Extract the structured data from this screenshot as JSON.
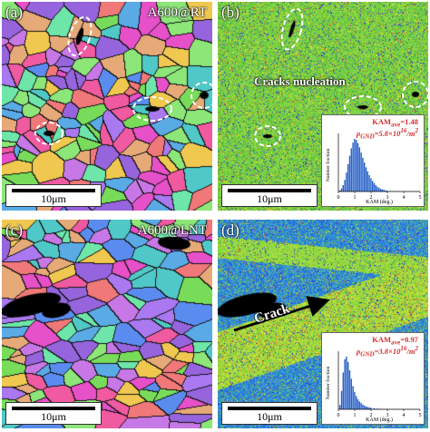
{
  "colors": {
    "kam_bar": "#2a62c9",
    "kam_text": "#d32f2f",
    "ellipse": "#ffffff"
  },
  "panel_a": {
    "letter": "(a)",
    "tag": "A600@RT",
    "scale": "10μm"
  },
  "panel_b": {
    "letter": "(b)",
    "annotation": "Cracks nucleation",
    "scale": "10μm",
    "kam_line": "KAM",
    "kam_sub": "ave",
    "kam_value": "=1.48",
    "rho_line": "ρ",
    "rho_sub": "GND",
    "rho_value": "=5.8×10",
    "rho_exp": "16",
    "rho_unit": "/m",
    "rho_unit_exp": "2",
    "hist": {
      "ylabel": "Number fraction",
      "xlabel": "KAM (deg.)",
      "xticks": [
        "0",
        "1",
        "2",
        "3",
        "4",
        "5"
      ]
    }
  },
  "panel_c": {
    "letter": "(c)",
    "tag": "A600@LNT",
    "scale": "10μm"
  },
  "panel_d": {
    "letter": "(d)",
    "annotation": "Crack",
    "scale": "10μm",
    "kam_line": "KAM",
    "kam_sub": "ave",
    "kam_value": "=0.97",
    "rho_line": "ρ",
    "rho_sub": "GND",
    "rho_value": "=3.8×10",
    "rho_exp": "16",
    "rho_unit": "/m",
    "rho_unit_exp": "2",
    "hist": {
      "ylabel": "Number fraction",
      "xlabel": "KAM (deg.)",
      "xticks": [
        "0",
        "1",
        "2",
        "3",
        "4",
        "5"
      ]
    }
  },
  "chart_data": [
    {
      "type": "bar",
      "title": "",
      "xlabel": "KAM (deg.)",
      "ylabel": "Number fraction",
      "xlim": [
        0,
        5
      ],
      "x": [
        0.1,
        0.2,
        0.3,
        0.4,
        0.5,
        0.6,
        0.7,
        0.8,
        0.9,
        1.0,
        1.1,
        1.2,
        1.3,
        1.4,
        1.5,
        1.6,
        1.7,
        1.8,
        1.9,
        2.0,
        2.1,
        2.2,
        2.3,
        2.4,
        2.5,
        2.6,
        2.7,
        2.8,
        2.9,
        3.0,
        3.2,
        3.4,
        3.6,
        3.8,
        4.0
      ],
      "values": [
        0.02,
        0.06,
        0.12,
        0.22,
        0.36,
        0.52,
        0.68,
        0.82,
        0.93,
        1.0,
        0.98,
        0.92,
        0.84,
        0.74,
        0.64,
        0.55,
        0.46,
        0.38,
        0.31,
        0.25,
        0.2,
        0.16,
        0.12,
        0.09,
        0.07,
        0.05,
        0.04,
        0.03,
        0.02,
        0.015,
        0.01,
        0.008,
        0.005,
        0.003,
        0.002
      ]
    },
    {
      "type": "bar",
      "title": "",
      "xlabel": "KAM (deg.)",
      "ylabel": "Number fraction",
      "xlim": [
        0,
        5
      ],
      "x": [
        0.1,
        0.2,
        0.3,
        0.4,
        0.5,
        0.6,
        0.7,
        0.8,
        0.9,
        1.0,
        1.1,
        1.2,
        1.3,
        1.4,
        1.5,
        1.6,
        1.7,
        1.8,
        1.9,
        2.0,
        2.2,
        2.4,
        2.6,
        2.8,
        3.0,
        3.5,
        4.0
      ],
      "values": [
        0.08,
        0.35,
        0.7,
        0.95,
        1.0,
        0.9,
        0.74,
        0.58,
        0.44,
        0.33,
        0.25,
        0.19,
        0.15,
        0.12,
        0.09,
        0.07,
        0.055,
        0.045,
        0.035,
        0.03,
        0.022,
        0.015,
        0.01,
        0.008,
        0.006,
        0.004,
        0.002
      ]
    }
  ]
}
